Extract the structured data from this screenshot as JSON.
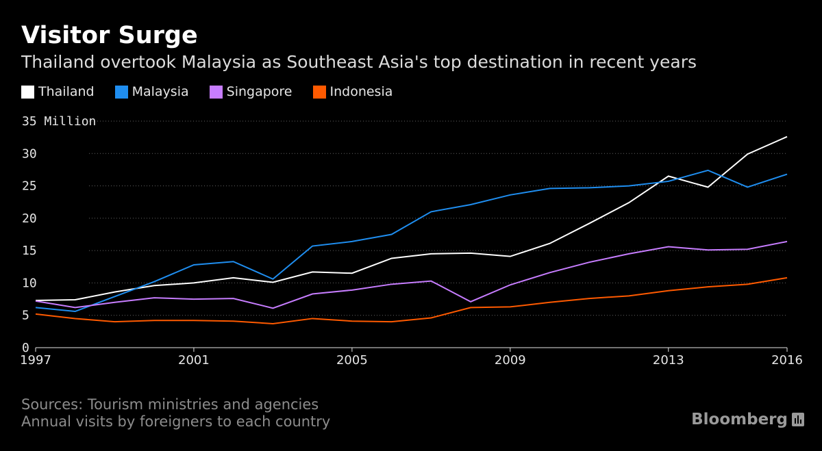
{
  "title": "Visitor Surge",
  "subtitle": "Thailand overtook Malaysia as Southeast Asia's top destination in recent years",
  "footer": {
    "sources": "Sources: Tourism ministries and agencies",
    "note": "Annual visits by foreigners to each country"
  },
  "logo": "Bloomberg",
  "chart_data": {
    "type": "line",
    "title": "Visitor Surge",
    "ylabel": "",
    "y_unit_label": "35 Million",
    "ylim": [
      0,
      35
    ],
    "yticks": [
      0,
      5,
      10,
      15,
      20,
      25,
      30
    ],
    "xlim": [
      1997,
      2016
    ],
    "xticks": [
      1997,
      2001,
      2005,
      2009,
      2013,
      2016
    ],
    "grid": true,
    "legend": "top-left",
    "x": [
      1997,
      1998,
      1999,
      2000,
      2001,
      2002,
      2003,
      2004,
      2005,
      2006,
      2007,
      2008,
      2009,
      2010,
      2011,
      2012,
      2013,
      2014,
      2015,
      2016
    ],
    "series": [
      {
        "name": "Thailand",
        "color": "#ffffff",
        "values": [
          7.3,
          7.4,
          8.6,
          9.6,
          10.0,
          10.8,
          10.1,
          11.7,
          11.5,
          13.8,
          14.5,
          14.6,
          14.1,
          16.1,
          19.2,
          22.4,
          26.5,
          24.8,
          29.9,
          32.6
        ]
      },
      {
        "name": "Malaysia",
        "color": "#1f8ef0",
        "values": [
          6.2,
          5.6,
          7.9,
          10.2,
          12.8,
          13.3,
          10.6,
          15.7,
          16.4,
          17.5,
          21.0,
          22.1,
          23.6,
          24.6,
          24.7,
          25.0,
          25.7,
          27.4,
          24.8,
          26.8
        ]
      },
      {
        "name": "Singapore",
        "color": "#c77dff",
        "values": [
          7.2,
          6.2,
          7.0,
          7.7,
          7.5,
          7.6,
          6.1,
          8.3,
          8.9,
          9.8,
          10.3,
          7.1,
          9.7,
          11.6,
          13.2,
          14.5,
          15.6,
          15.1,
          15.2,
          16.4
        ]
      },
      {
        "name": "Indonesia",
        "color": "#ff5a00",
        "values": [
          5.2,
          4.5,
          4.0,
          4.2,
          4.2,
          4.1,
          3.7,
          4.5,
          4.1,
          4.0,
          4.6,
          6.2,
          6.3,
          7.0,
          7.6,
          8.0,
          8.8,
          9.4,
          9.8,
          10.8
        ]
      }
    ]
  }
}
